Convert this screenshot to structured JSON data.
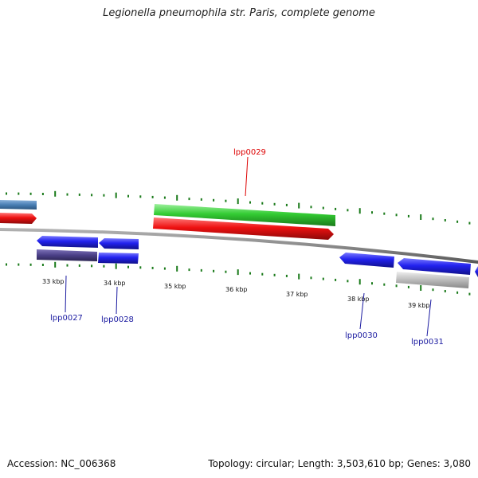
{
  "title": "Legionella pneumophila str. Paris, complete genome",
  "footer": {
    "accession": "Accession: NC_006368",
    "summary": "Topology: circular; Length: 3,503,610 bp; Genes: 3,080"
  },
  "colors": {
    "backbone": "#8a8a8a",
    "tick": "#1a7a1a",
    "forward_gene": "#2222ee",
    "highlight_forward": "#ee1111",
    "highlight_reverse": "#33cc33",
    "light_blue": "#4a7fb5",
    "dark_purple": "#4a3f86",
    "gray_gene": "#bbbbbb",
    "label_blue": "#1a1aa0",
    "label_red": "#dd0000"
  },
  "ruler": {
    "unit": "kbp",
    "ticks": [
      {
        "kbp": 33,
        "label": "33 kbp"
      },
      {
        "kbp": 34,
        "label": "34 kbp"
      },
      {
        "kbp": 35,
        "label": "35 kbp"
      },
      {
        "kbp": 36,
        "label": "36 kbp"
      },
      {
        "kbp": 37,
        "label": "37 kbp"
      },
      {
        "kbp": 38,
        "label": "38 kbp"
      },
      {
        "kbp": 39,
        "label": "39 kbp"
      }
    ]
  },
  "gene_labels": [
    {
      "name": "lpp0029",
      "color": "label_red"
    },
    {
      "name": "lpp0027",
      "color": "label_blue"
    },
    {
      "name": "lpp0028",
      "color": "label_blue"
    },
    {
      "name": "lpp0030",
      "color": "label_blue"
    },
    {
      "name": "lpp0031",
      "color": "label_blue"
    }
  ]
}
